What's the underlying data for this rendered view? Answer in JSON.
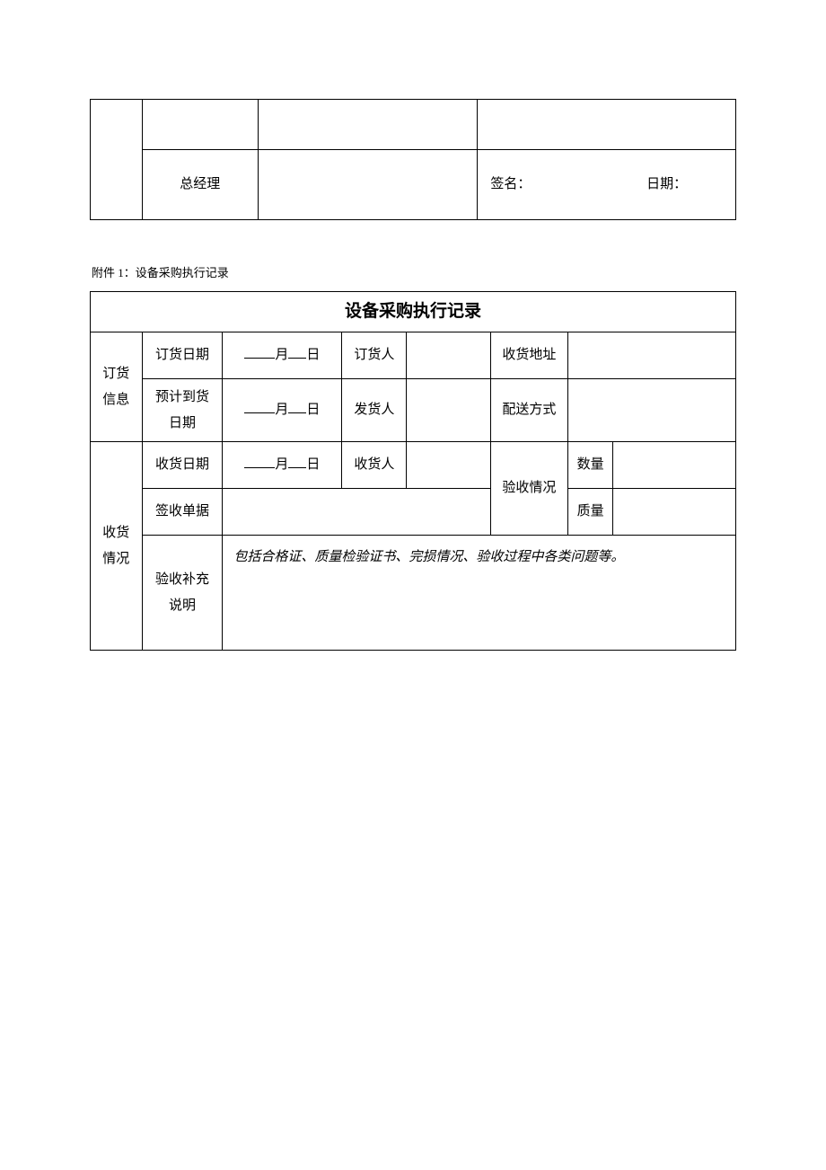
{
  "page": {
    "background_color": "#ffffff",
    "text_color": "#000000",
    "border_color": "#000000",
    "base_fontsize": 15
  },
  "signature_table": {
    "role_label": "总经理",
    "signature_label": "签名：",
    "date_label": "日期："
  },
  "attachment_label": "附件 1：设备采购执行记录",
  "record_table": {
    "title": "设备采购执行记录",
    "order_section": "订货信息",
    "order_date": "订货日期",
    "month_day_fill": "____月__日",
    "orderer": "订货人",
    "ship_address": "收货地址",
    "expected_date": "预计到货日期",
    "shipper": "发货人",
    "ship_method": "配送方式",
    "receive_section": "收货情况",
    "receive_date": "收货日期",
    "receiver": "收货人",
    "accept_status": "验收情况",
    "qty": "数量",
    "sign_doc": "签收单据",
    "quality": "质量",
    "accept_note_label": "验收补充说明",
    "accept_note_hint": "包括合格证、质量检验证书、完损情况、验收过程中各类问题等。"
  }
}
